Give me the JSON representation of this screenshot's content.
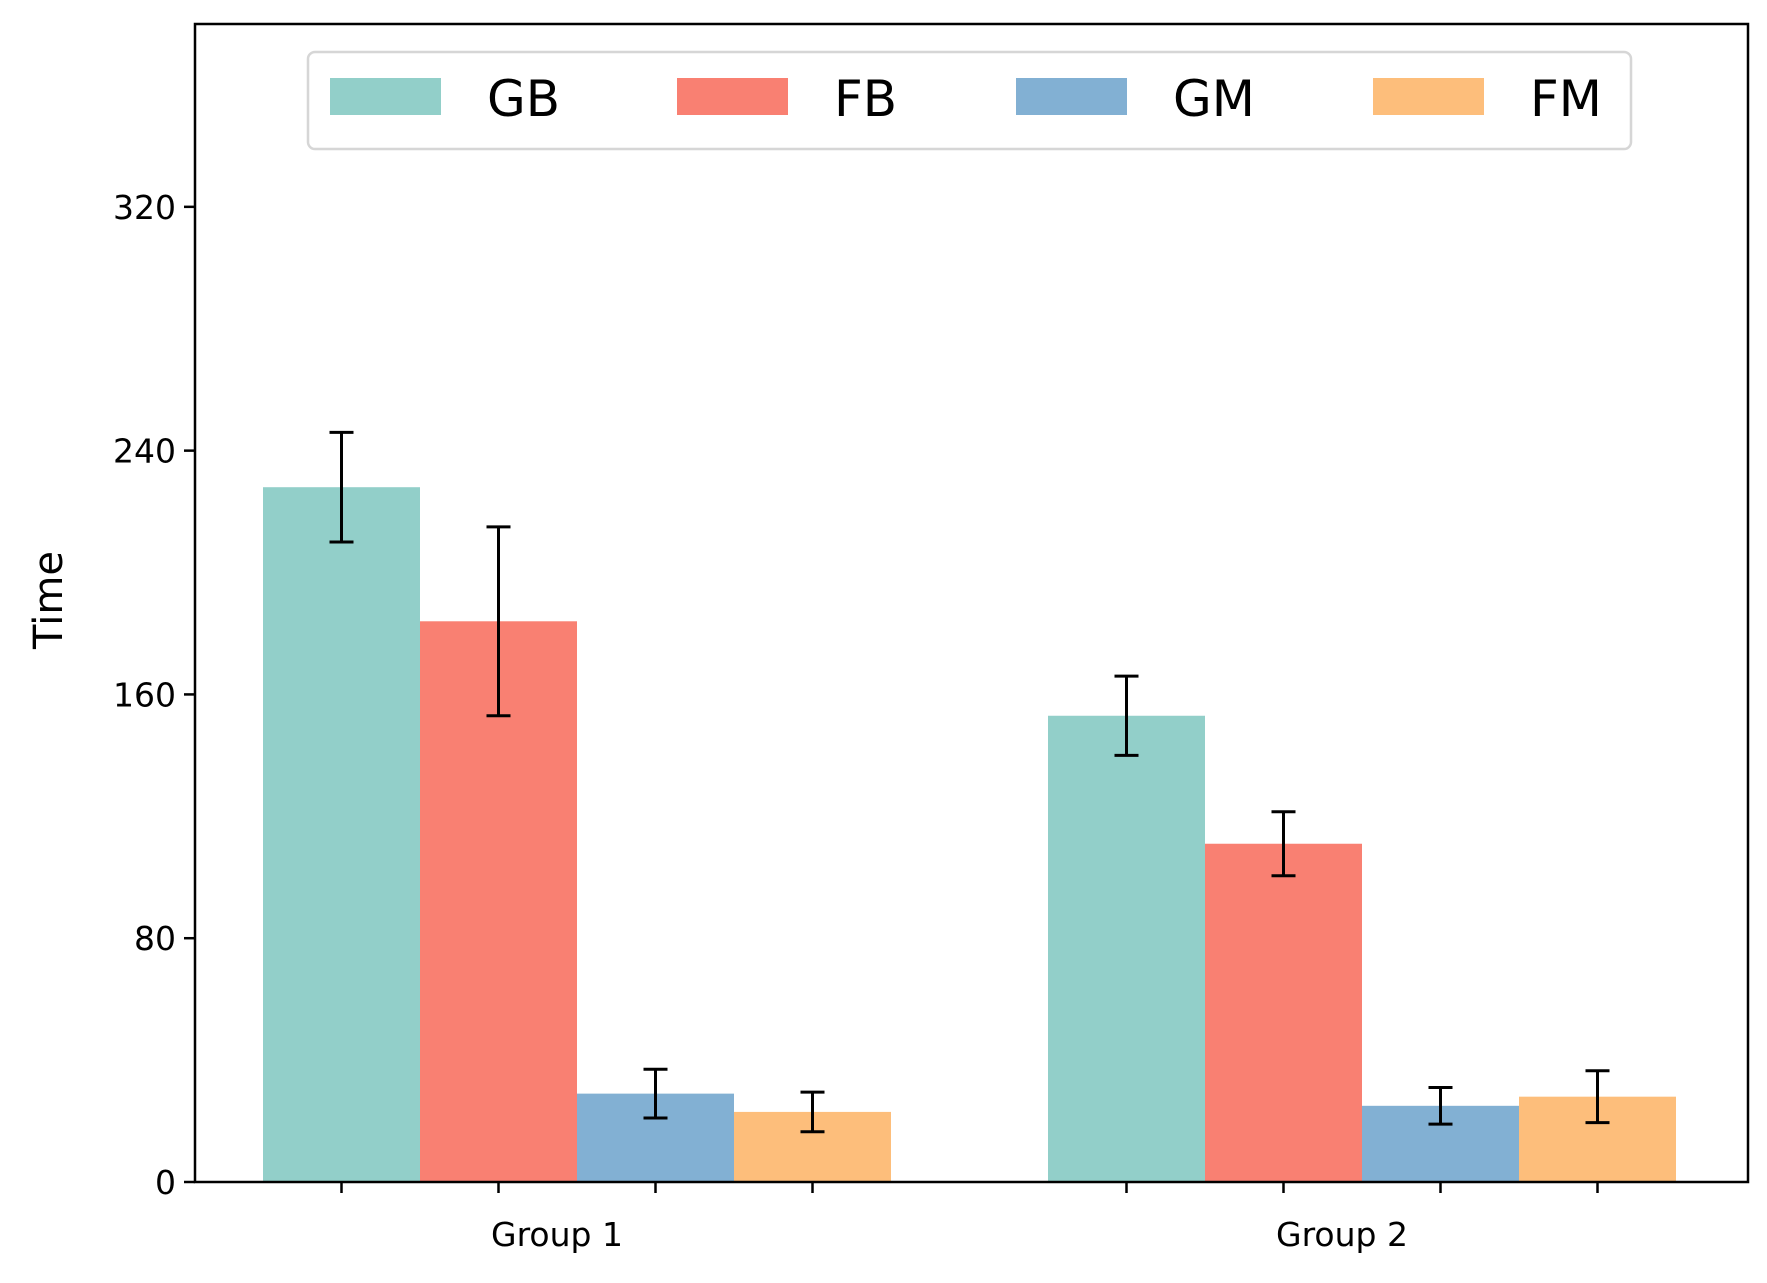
{
  "chart_data": {
    "type": "bar",
    "title": "",
    "xlabel": "",
    "ylabel": "Time",
    "ylim": [
      0,
      380
    ],
    "yticks": [
      0,
      80,
      160,
      240,
      320
    ],
    "categories": [
      "Group 1",
      "Group 2"
    ],
    "grid": false,
    "legend_position": "top-center",
    "series": [
      {
        "name": "GB",
        "color": "#92CFC9",
        "values": [
          228,
          153
        ],
        "errors": [
          18,
          13
        ]
      },
      {
        "name": "FB",
        "color": "#F98072",
        "values": [
          184,
          111
        ],
        "errors": [
          31,
          10.5
        ]
      },
      {
        "name": "GM",
        "color": "#82B0D3",
        "values": [
          29,
          25
        ],
        "errors": [
          8,
          6
        ]
      },
      {
        "name": "FM",
        "color": "#FDBE7B",
        "values": [
          23,
          28
        ],
        "errors": [
          6.5,
          8.5
        ]
      }
    ]
  }
}
